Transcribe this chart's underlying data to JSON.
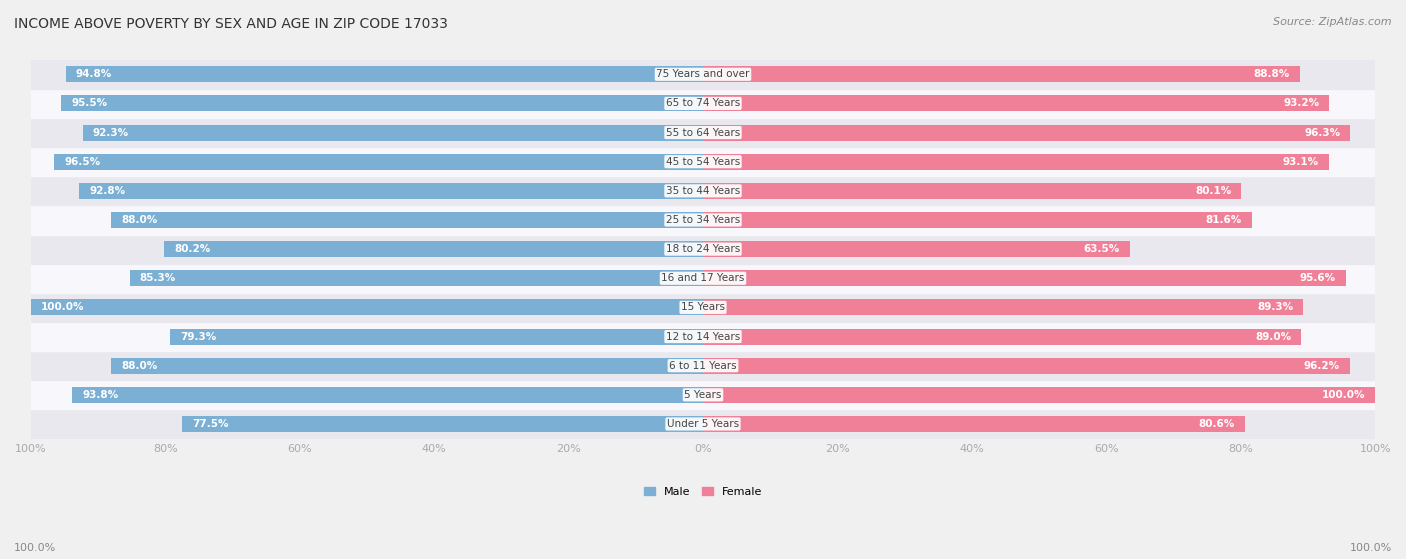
{
  "title": "INCOME ABOVE POVERTY BY SEX AND AGE IN ZIP CODE 17033",
  "source": "Source: ZipAtlas.com",
  "categories": [
    "Under 5 Years",
    "5 Years",
    "6 to 11 Years",
    "12 to 14 Years",
    "15 Years",
    "16 and 17 Years",
    "18 to 24 Years",
    "25 to 34 Years",
    "35 to 44 Years",
    "45 to 54 Years",
    "55 to 64 Years",
    "65 to 74 Years",
    "75 Years and over"
  ],
  "male": [
    77.5,
    93.8,
    88.0,
    79.3,
    100.0,
    85.3,
    80.2,
    88.0,
    92.8,
    96.5,
    92.3,
    95.5,
    94.8
  ],
  "female": [
    80.6,
    100.0,
    96.2,
    89.0,
    89.3,
    95.6,
    63.5,
    81.6,
    80.1,
    93.1,
    96.3,
    93.2,
    88.8
  ],
  "male_color": "#7bafd4",
  "female_color": "#f08098",
  "male_label": "Male",
  "female_label": "Female",
  "bg_color": "#f0f0f0",
  "row_colors": [
    "#e8e8ee",
    "#f8f8fc"
  ],
  "title_fontsize": 10,
  "source_fontsize": 8,
  "label_fontsize": 7.5,
  "tick_fontsize": 8,
  "bar_height": 0.55,
  "bottom_labels": [
    "100.0%",
    "100.0%"
  ]
}
